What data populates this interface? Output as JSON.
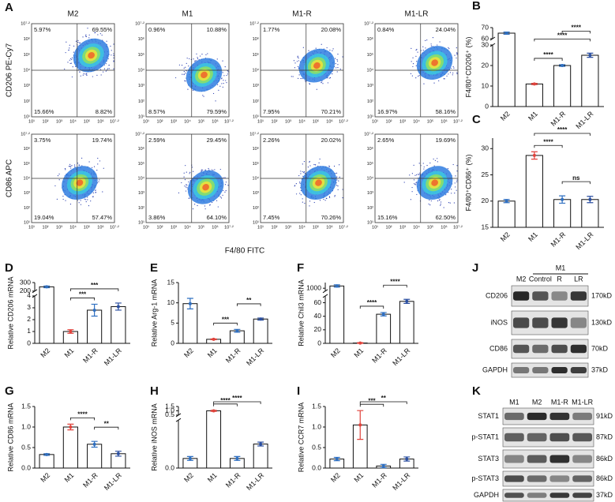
{
  "flow": {
    "panel": "A",
    "columns": [
      "M2",
      "M1",
      "M1-R",
      "M1-LR"
    ],
    "xlabel": "F4/80 FITC",
    "ticks": [
      "10¹",
      "10²",
      "10³",
      "10⁴",
      "10⁵",
      "10⁶",
      "10⁷·²"
    ],
    "rows": [
      {
        "ylabel": "CD206 PE-Cy7",
        "quadrants": [
          [
            "5.97%",
            "69.55%",
            "15.66%",
            "8.82%"
          ],
          [
            "0.96%",
            "10.88%",
            "8.57%",
            "79.59%"
          ],
          [
            "1.77%",
            "20.08%",
            "7.95%",
            "70.21%"
          ],
          [
            "0.84%",
            "24.04%",
            "16.97%",
            "58.16%"
          ]
        ]
      },
      {
        "ylabel": "CD86 APC",
        "quadrants": [
          [
            "3.75%",
            "19.74%",
            "19.04%",
            "57.47%"
          ],
          [
            "2.59%",
            "29.45%",
            "3.86%",
            "64.10%"
          ],
          [
            "2.26%",
            "20.02%",
            "7.45%",
            "70.26%"
          ],
          [
            "2.65%",
            "19.69%",
            "15.16%",
            "62.50%"
          ]
        ]
      }
    ]
  },
  "chart_data": [
    {
      "type": "bar",
      "panel": "B",
      "ylabel": "F4/80⁺CD206⁺ (%)",
      "categories": [
        "M2",
        "M1",
        "M1-R",
        "M1-LR"
      ],
      "values": [
        65,
        11,
        20,
        25
      ],
      "errors": [
        1,
        0.3,
        0.4,
        1
      ],
      "colors": [
        "#2f6fc0",
        "#e0433c",
        "#2f6fc0",
        "#2b4fa0"
      ],
      "ylim_segments": [
        [
          0,
          30
        ],
        [
          60,
          70
        ]
      ],
      "yticks": [
        0,
        10,
        20,
        30,
        60,
        70
      ],
      "brackets": [
        [
          1,
          2,
          "****"
        ],
        [
          1,
          3,
          "****"
        ],
        [
          2,
          3,
          "****"
        ]
      ]
    },
    {
      "type": "bar",
      "panel": "C",
      "ylabel": "F4/80⁺CD86⁺ (%)",
      "categories": [
        "M2",
        "M1",
        "M1-R",
        "M1-LR"
      ],
      "values": [
        20,
        28.7,
        20.3,
        20.3
      ],
      "errors": [
        0.3,
        0.7,
        0.7,
        0.6
      ],
      "colors": [
        "#2f6fc0",
        "#e0433c",
        "#2f6fc0",
        "#2b4fa0"
      ],
      "ylim": [
        15,
        32
      ],
      "yticks": [
        15,
        20,
        25,
        30
      ],
      "brackets": [
        [
          1,
          2,
          "****"
        ],
        [
          2,
          3,
          "ns"
        ],
        [
          1,
          3,
          "****"
        ]
      ]
    },
    {
      "type": "bar",
      "panel": "D",
      "ylabel": "Relative CD206 mRNA",
      "categories": [
        "M2",
        "M1",
        "M1-R",
        "M1-LR"
      ],
      "values": [
        250,
        1,
        2.8,
        3.1
      ],
      "errors": [
        10,
        0.15,
        0.5,
        0.3
      ],
      "colors": [
        "#2f6fc0",
        "#e0433c",
        "#2f6fc0",
        "#2b4fa0"
      ],
      "ylim_segments": [
        [
          0,
          4
        ],
        [
          200,
          300
        ]
      ],
      "yticks": [
        0,
        1,
        2,
        3,
        4,
        200,
        300
      ],
      "brackets": [
        [
          1,
          2,
          "***"
        ],
        [
          1,
          3,
          "***"
        ]
      ]
    },
    {
      "type": "bar",
      "panel": "E",
      "ylabel": "Relative Arg-1 mRNA",
      "categories": [
        "M2",
        "M1",
        "M1-R",
        "M1-LR"
      ],
      "values": [
        9.8,
        1,
        3.1,
        6
      ],
      "errors": [
        1.3,
        0.1,
        0.35,
        0.25
      ],
      "colors": [
        "#2f6fc0",
        "#e0433c",
        "#2f6fc0",
        "#2b4fa0"
      ],
      "ylim": [
        0,
        15
      ],
      "yticks": [
        0,
        5,
        10,
        15
      ],
      "brackets": [
        [
          1,
          2,
          "***"
        ],
        [
          2,
          3,
          "**"
        ]
      ]
    },
    {
      "type": "bar",
      "panel": "F",
      "ylabel": "Relative Chil3 mRNA",
      "categories": [
        "M2",
        "M1",
        "M1-R",
        "M1-LR"
      ],
      "values": [
        1080,
        0.5,
        43,
        62
      ],
      "errors": [
        40,
        0.5,
        2.5,
        3
      ],
      "colors": [
        "#2f6fc0",
        "#e0433c",
        "#2f6fc0",
        "#2b4fa0"
      ],
      "ylim_segments": [
        [
          0,
          70
        ],
        [
          900,
          1200
        ]
      ],
      "yticks": [
        0,
        20,
        40,
        60,
        1000
      ],
      "brackets": [
        [
          1,
          2,
          "****"
        ],
        [
          2,
          3,
          "****"
        ]
      ]
    },
    {
      "type": "bar",
      "panel": "G",
      "ylabel": "Relative CD86 mRNA",
      "categories": [
        "M2",
        "M1",
        "M1-R",
        "M1-LR"
      ],
      "values": [
        0.33,
        1,
        0.58,
        0.35
      ],
      "errors": [
        0.02,
        0.07,
        0.07,
        0.06
      ],
      "colors": [
        "#2f6fc0",
        "#e0433c",
        "#2f6fc0",
        "#2b4fa0"
      ],
      "ylim": [
        0,
        1.5
      ],
      "yticks": [
        {
          "value": 0,
          "label": "0.0"
        },
        0.5,
        {
          "value": 1,
          "label": "1.0"
        },
        1.5
      ],
      "brackets": [
        [
          1,
          2,
          "****"
        ],
        [
          2,
          3,
          "**"
        ]
      ]
    },
    {
      "type": "bar",
      "panel": "H",
      "ylabel": "Relative iNOS mRNA",
      "categories": [
        "M2",
        "M1",
        "M1-R",
        "M1-LR"
      ],
      "values": [
        0.01,
        1,
        0.01,
        0.025
      ],
      "errors": [
        0.002,
        0.06,
        0.002,
        0.002
      ],
      "colors": [
        "#2f6fc0",
        "#e0433c",
        "#2f6fc0",
        "#2b4fa0"
      ],
      "ylim_segments": [
        [
          0,
          0.05
        ],
        [
          0.5,
          1.5
        ]
      ],
      "yticks": [
        {
          "value": 0,
          "label": "0.0"
        },
        0.5,
        {
          "value": 1,
          "label": "1.0"
        },
        1.5
      ],
      "brackets": [
        [
          1,
          2,
          "****"
        ],
        [
          1,
          3,
          "****"
        ]
      ]
    },
    {
      "type": "bar",
      "panel": "I",
      "ylabel": "Relative CCR7 mRNA",
      "categories": [
        "M2",
        "M1",
        "M1-R",
        "M1-LR"
      ],
      "values": [
        0.22,
        1.05,
        0.05,
        0.22
      ],
      "errors": [
        0.04,
        0.35,
        0.04,
        0.05
      ],
      "colors": [
        "#2f6fc0",
        "#e0433c",
        "#2f6fc0",
        "#2b4fa0"
      ],
      "ylim": [
        0,
        1.5
      ],
      "yticks": [
        {
          "value": 0,
          "label": "0.0"
        },
        0.5,
        {
          "value": 1,
          "label": "1.0"
        },
        1.5
      ],
      "brackets": [
        [
          1,
          2,
          "***"
        ],
        [
          1,
          3,
          "**"
        ]
      ]
    }
  ],
  "western_j": {
    "panel": "J",
    "group": "M1",
    "lanes": [
      "M2",
      "Control",
      "R",
      "LR"
    ],
    "proteins": [
      "CD206",
      "iNOS",
      "CD86",
      "GAPDH"
    ],
    "sizes": [
      "170kD",
      "130kD",
      "70kD",
      "37kD"
    ]
  },
  "western_k": {
    "panel": "K",
    "lanes": [
      "M1",
      "M2",
      "M1-R",
      "M1-LR"
    ],
    "proteins": [
      "STAT1",
      "p-STAT1",
      "STAT3",
      "p-STAT3",
      "GAPDH"
    ],
    "sizes": [
      "91kD",
      "87kD",
      "86kD",
      "86kD",
      "37kD"
    ]
  }
}
